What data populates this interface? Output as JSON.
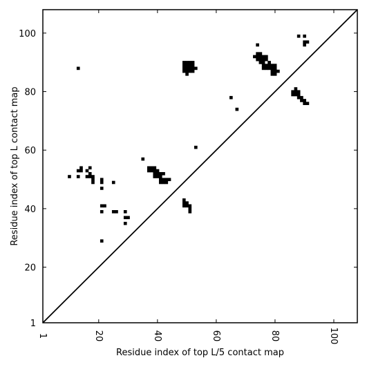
{
  "chart_data": {
    "type": "heatmap",
    "xlabel": "Residue index of top L/5 contact map",
    "ylabel": "Residue index of top L contact map",
    "xlim": [
      1,
      108
    ],
    "ylim": [
      1,
      108
    ],
    "xticks": [
      1,
      20,
      40,
      60,
      80,
      100
    ],
    "yticks": [
      1,
      20,
      40,
      60,
      80,
      100
    ],
    "xtick_labels": [
      "1",
      "20",
      "40",
      "60",
      "80",
      "100"
    ],
    "ytick_labels": [
      "1",
      "20",
      "40",
      "60",
      "80",
      "100"
    ],
    "grid": false,
    "diagonal_line": true,
    "cell_color": "#000000",
    "line_color": "#000000",
    "points": [
      [
        13,
        88
      ],
      [
        10,
        51
      ],
      [
        13,
        51
      ],
      [
        13,
        53
      ],
      [
        14,
        53
      ],
      [
        14,
        54
      ],
      [
        16,
        51
      ],
      [
        16,
        53
      ],
      [
        17,
        51
      ],
      [
        17,
        52
      ],
      [
        17,
        54
      ],
      [
        18,
        49
      ],
      [
        18,
        50
      ],
      [
        18,
        51
      ],
      [
        21,
        47
      ],
      [
        21,
        49
      ],
      [
        21,
        50
      ],
      [
        21,
        41
      ],
      [
        22,
        41
      ],
      [
        21,
        39
      ],
      [
        21,
        29
      ],
      [
        25,
        49
      ],
      [
        25,
        39
      ],
      [
        26,
        39
      ],
      [
        29,
        39
      ],
      [
        29,
        37
      ],
      [
        30,
        37
      ],
      [
        29,
        35
      ],
      [
        35,
        57
      ],
      [
        37,
        53
      ],
      [
        38,
        53
      ],
      [
        39,
        53
      ],
      [
        37,
        54
      ],
      [
        38,
        54
      ],
      [
        39,
        54
      ],
      [
        39,
        51
      ],
      [
        40,
        51
      ],
      [
        41,
        51
      ],
      [
        39,
        52
      ],
      [
        40,
        52
      ],
      [
        41,
        52
      ],
      [
        42,
        52
      ],
      [
        40,
        53
      ],
      [
        41,
        49
      ],
      [
        42,
        49
      ],
      [
        43,
        49
      ],
      [
        41,
        50
      ],
      [
        42,
        50
      ],
      [
        43,
        50
      ],
      [
        44,
        50
      ],
      [
        49,
        41
      ],
      [
        50,
        41
      ],
      [
        51,
        41
      ],
      [
        49,
        42
      ],
      [
        50,
        42
      ],
      [
        49,
        43
      ],
      [
        51,
        39
      ],
      [
        51,
        40
      ],
      [
        53,
        61
      ],
      [
        49,
        87
      ],
      [
        50,
        87
      ],
      [
        51,
        87
      ],
      [
        52,
        87
      ],
      [
        49,
        88
      ],
      [
        50,
        88
      ],
      [
        51,
        88
      ],
      [
        52,
        88
      ],
      [
        53,
        88
      ],
      [
        49,
        89
      ],
      [
        50,
        89
      ],
      [
        51,
        89
      ],
      [
        52,
        89
      ],
      [
        49,
        90
      ],
      [
        50,
        90
      ],
      [
        51,
        90
      ],
      [
        52,
        90
      ],
      [
        50,
        86
      ],
      [
        65,
        78
      ],
      [
        67,
        74
      ],
      [
        74,
        96
      ],
      [
        73,
        92
      ],
      [
        74,
        92
      ],
      [
        75,
        92
      ],
      [
        74,
        93
      ],
      [
        75,
        93
      ],
      [
        74,
        91
      ],
      [
        75,
        91
      ],
      [
        75,
        90
      ],
      [
        76,
        90
      ],
      [
        76,
        91
      ],
      [
        77,
        91
      ],
      [
        76,
        92
      ],
      [
        77,
        92
      ],
      [
        76,
        89
      ],
      [
        77,
        89
      ],
      [
        78,
        89
      ],
      [
        79,
        89
      ],
      [
        80,
        89
      ],
      [
        76,
        88
      ],
      [
        77,
        88
      ],
      [
        78,
        88
      ],
      [
        79,
        88
      ],
      [
        80,
        88
      ],
      [
        78,
        90
      ],
      [
        79,
        87
      ],
      [
        80,
        87
      ],
      [
        81,
        87
      ],
      [
        79,
        86
      ],
      [
        80,
        86
      ],
      [
        86,
        79
      ],
      [
        87,
        79
      ],
      [
        88,
        79
      ],
      [
        86,
        80
      ],
      [
        87,
        80
      ],
      [
        88,
        80
      ],
      [
        87,
        81
      ],
      [
        88,
        78
      ],
      [
        89,
        78
      ],
      [
        89,
        77
      ],
      [
        90,
        77
      ],
      [
        90,
        76
      ],
      [
        91,
        76
      ],
      [
        88,
        99
      ],
      [
        90,
        99
      ],
      [
        90,
        97
      ],
      [
        91,
        97
      ],
      [
        90,
        96
      ]
    ]
  }
}
